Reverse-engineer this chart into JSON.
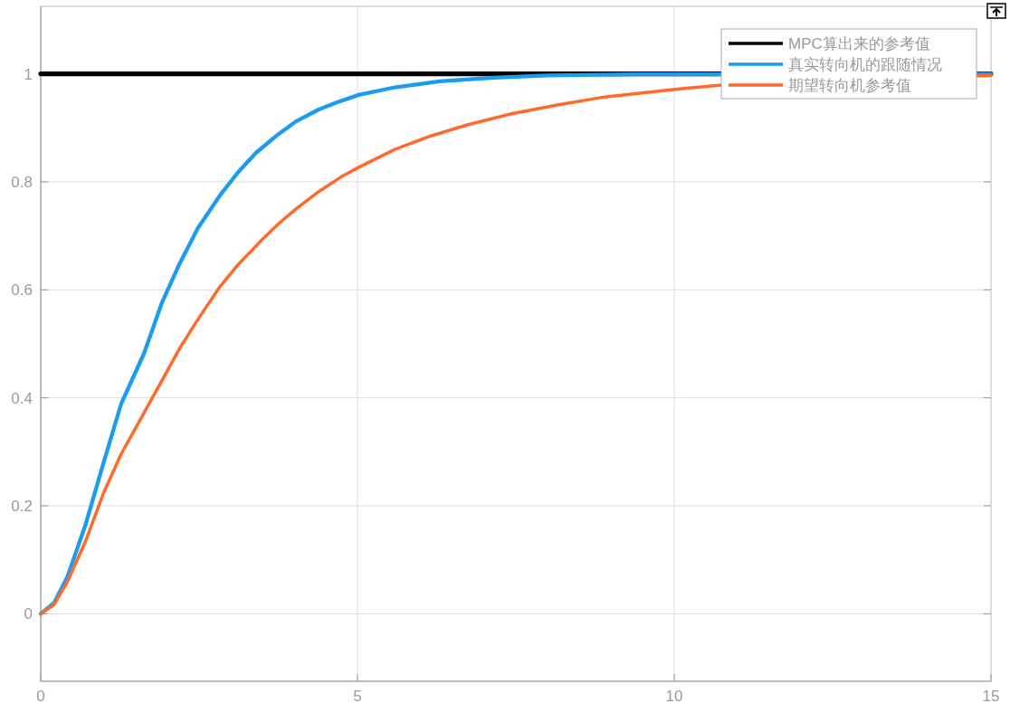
{
  "chart_data": {
    "type": "line",
    "xlim": [
      0,
      15
    ],
    "ylim": [
      -0.125,
      1.125
    ],
    "xticks": [
      0,
      5,
      10,
      15
    ],
    "yticks": [
      0,
      0.2,
      0.4,
      0.6,
      0.8,
      1
    ],
    "grid": true,
    "legend": "top right",
    "line_style": "solid",
    "marker": "none",
    "series": [
      {
        "name": "MPC算出来的参考值",
        "color": "#000000",
        "x": [
          0,
          15
        ],
        "values": [
          1,
          1
        ]
      },
      {
        "name": "真实转向机的跟随情况",
        "color": "#1a9cf0",
        "x": [
          0,
          0.21,
          0.42,
          0.71,
          0.99,
          1.27,
          1.63,
          1.91,
          2.19,
          2.48,
          2.83,
          3.11,
          3.4,
          3.75,
          4.03,
          4.39,
          4.67,
          5.02,
          5.59,
          6.3,
          7.15,
          8,
          9.4,
          15
        ],
        "values": [
          0,
          0.02,
          0.068,
          0.166,
          0.279,
          0.389,
          0.482,
          0.575,
          0.648,
          0.714,
          0.775,
          0.817,
          0.854,
          0.888,
          0.912,
          0.934,
          0.947,
          0.961,
          0.975,
          0.986,
          0.993,
          0.997,
          0.999,
          1
        ]
      },
      {
        "name": "期望转向机参考值",
        "color": "#ff6a2a",
        "x": [
          0,
          0.21,
          0.42,
          0.71,
          0.99,
          1.27,
          1.63,
          1.91,
          2.19,
          2.48,
          2.83,
          3.11,
          3.47,
          3.75,
          4.03,
          4.39,
          4.74,
          5.02,
          5.59,
          6.16,
          6.72,
          7.43,
          8.14,
          8.84,
          9.98,
          11.1,
          15
        ],
        "values": [
          0,
          0.017,
          0.059,
          0.135,
          0.223,
          0.296,
          0.372,
          0.431,
          0.491,
          0.545,
          0.606,
          0.646,
          0.69,
          0.722,
          0.75,
          0.782,
          0.809,
          0.827,
          0.86,
          0.885,
          0.905,
          0.926,
          0.942,
          0.956,
          0.971,
          0.983,
          0.997
        ]
      }
    ]
  }
}
